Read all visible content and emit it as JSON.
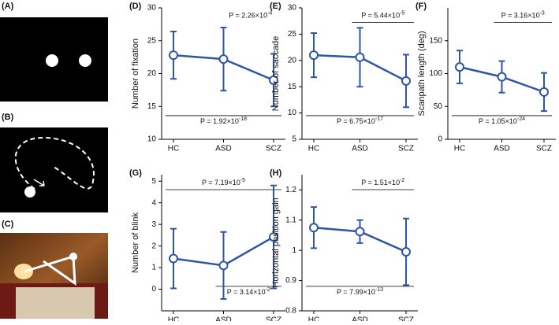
{
  "image_panels": [
    {
      "label": "(A)"
    },
    {
      "label": "(B)"
    },
    {
      "label": "(C)"
    }
  ],
  "chart_data": [
    {
      "type": "line",
      "title": "(D)",
      "y_label": "Number of fixation",
      "categories": [
        "HC",
        "ASD",
        "SCZ"
      ],
      "values": [
        22.8,
        22.2,
        19
      ],
      "errors": [
        3.6,
        4.8,
        4
      ],
      "color": "#2f55a4",
      "ylim": [
        10,
        30
      ],
      "yticks": [
        10,
        15,
        20,
        25,
        30
      ],
      "annotations": [
        {
          "text": "P = 2.26×10",
          "exponent": "-4",
          "position": "top"
        },
        {
          "text": "P = 1.92×10",
          "exponent": "-18",
          "position": "bottom",
          "between": [
            "HC",
            "SCZ"
          ]
        }
      ]
    },
    {
      "type": "line",
      "title": "(E)",
      "y_label": "Number of saccade",
      "categories": [
        "HC",
        "ASD",
        "SCZ"
      ],
      "values": [
        21,
        20.6,
        16.1
      ],
      "errors": [
        4.2,
        5.6,
        5
      ],
      "color": "#2f55a4",
      "ylim": [
        5,
        30
      ],
      "yticks": [
        5,
        10,
        15,
        20,
        25,
        30
      ],
      "annotations": [
        {
          "text": "P = 5.44×10",
          "exponent": "-5",
          "position": "top",
          "between": [
            "ASD",
            "SCZ"
          ]
        },
        {
          "text": "P = 6.75×10",
          "exponent": "-17",
          "position": "bottom",
          "between": [
            "HC",
            "SCZ"
          ]
        }
      ]
    },
    {
      "type": "line",
      "title": "(F)",
      "y_label": "Scanpath length (deg)",
      "categories": [
        "HC",
        "ASD",
        "SCZ"
      ],
      "values": [
        110,
        95,
        72
      ],
      "errors": [
        25,
        24,
        29
      ],
      "color": "#2f55a4",
      "ylim": [
        0,
        200
      ],
      "yticks": [
        0,
        50,
        100,
        150
      ],
      "annotations": [
        {
          "text": "P = 3.16×10",
          "exponent": "-3",
          "position": "top",
          "between": [
            "ASD",
            "SCZ"
          ]
        },
        {
          "text": "P = 1.05×10",
          "exponent": "-24",
          "position": "bottom",
          "between": [
            "HC",
            "SCZ"
          ]
        }
      ]
    },
    {
      "type": "line",
      "title": "(G)",
      "y_label": "Number of blink",
      "categories": [
        "HC",
        "ASD",
        "SCZ"
      ],
      "values": [
        1.42,
        1.1,
        2.42
      ],
      "errors": [
        1.38,
        1.55,
        2.38
      ],
      "color": "#2f55a4",
      "ylim": [
        -1,
        5.3
      ],
      "yticks": [
        0,
        1,
        2,
        3,
        4,
        5
      ],
      "annotations": [
        {
          "text": "P = 7.19×10",
          "exponent": "-5",
          "position": "top",
          "between": [
            "HC",
            "SCZ"
          ]
        },
        {
          "text": "P = 3.14×10",
          "exponent": "-2",
          "position": "bottom",
          "between": [
            "ASD",
            "SCZ"
          ]
        }
      ]
    },
    {
      "type": "line",
      "title": "(H)",
      "y_label": "Horizontal position gain",
      "categories": [
        "HC",
        "ASD",
        "SCZ"
      ],
      "values": [
        1.075,
        1.062,
        0.995
      ],
      "errors": [
        0.068,
        0.038,
        0.11
      ],
      "color": "#2f55a4",
      "ylim": [
        0.8,
        1.25
      ],
      "yticks": [
        0.8,
        0.9,
        1,
        1.1,
        1.2
      ],
      "annotations": [
        {
          "text": "P = 1.51×10",
          "exponent": "-2",
          "position": "top",
          "between": [
            "ASD",
            "SCZ"
          ]
        },
        {
          "text": "P = 7.99×10",
          "exponent": "-13",
          "position": "bottom",
          "between": [
            "HC",
            "SCZ"
          ]
        }
      ]
    }
  ]
}
